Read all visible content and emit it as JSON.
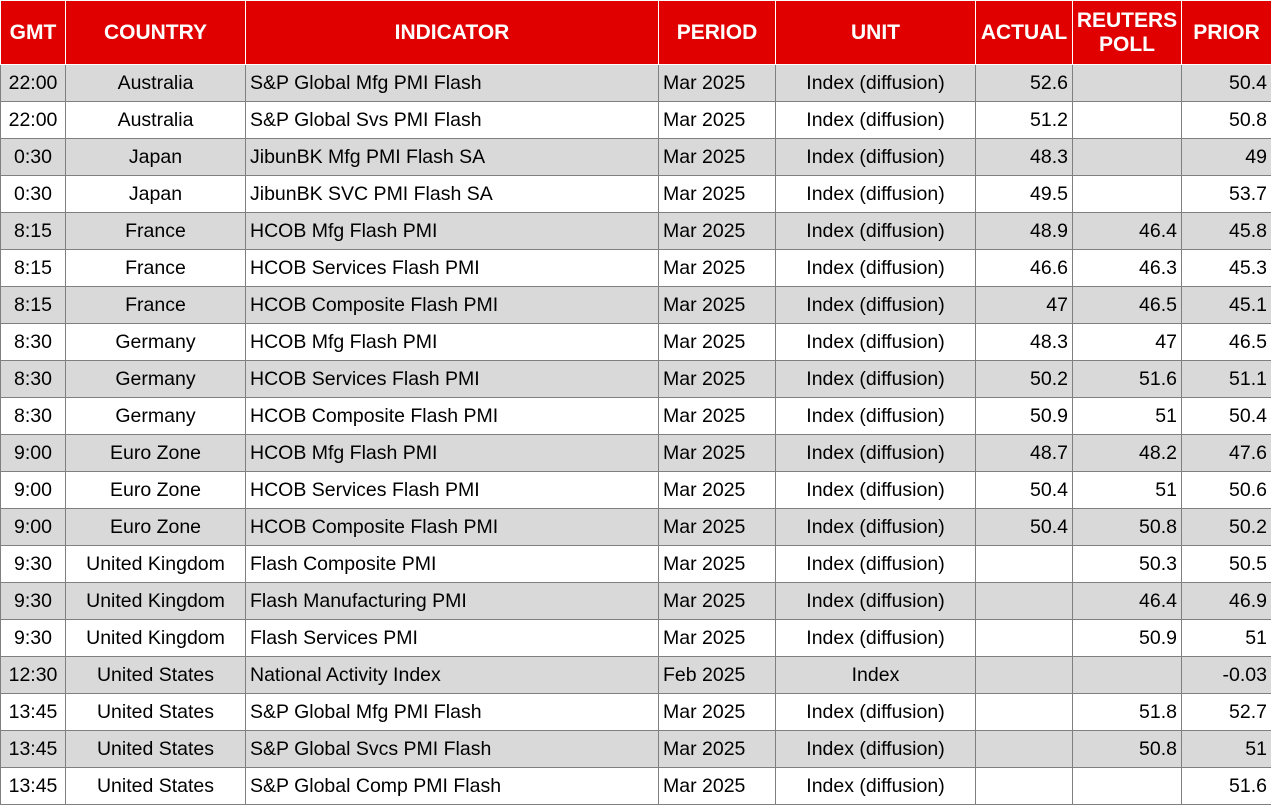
{
  "table": {
    "header": [
      "GMT",
      "COUNTRY",
      "INDICATOR",
      "PERIOD",
      "UNIT",
      "ACTUAL",
      "REUTERS POLL",
      "PRIOR"
    ],
    "rows": [
      [
        "22:00",
        "Australia",
        "S&P Global Mfg PMI Flash",
        "Mar 2025",
        "Index (diffusion)",
        52.6,
        null,
        50.4
      ],
      [
        "22:00",
        "Australia",
        "S&P Global Svs PMI Flash",
        "Mar 2025",
        "Index (diffusion)",
        51.2,
        null,
        50.8
      ],
      [
        "0:30",
        "Japan",
        "JibunBK Mfg PMI Flash SA",
        "Mar 2025",
        "Index (diffusion)",
        48.3,
        null,
        49
      ],
      [
        "0:30",
        "Japan",
        "JibunBK SVC PMI Flash SA",
        "Mar 2025",
        "Index (diffusion)",
        49.5,
        null,
        53.7
      ],
      [
        "8:15",
        "France",
        "HCOB Mfg Flash PMI",
        "Mar 2025",
        "Index (diffusion)",
        48.9,
        46.4,
        45.8
      ],
      [
        "8:15",
        "France",
        "HCOB Services Flash PMI",
        "Mar 2025",
        "Index (diffusion)",
        46.6,
        46.3,
        45.3
      ],
      [
        "8:15",
        "France",
        "HCOB Composite Flash PMI",
        "Mar 2025",
        "Index (diffusion)",
        47,
        46.5,
        45.1
      ],
      [
        "8:30",
        "Germany",
        "HCOB Mfg Flash PMI",
        "Mar 2025",
        "Index (diffusion)",
        48.3,
        47,
        46.5
      ],
      [
        "8:30",
        "Germany",
        "HCOB Services Flash PMI",
        "Mar 2025",
        "Index (diffusion)",
        50.2,
        51.6,
        51.1
      ],
      [
        "8:30",
        "Germany",
        "HCOB Composite Flash PMI",
        "Mar 2025",
        "Index (diffusion)",
        50.9,
        51,
        50.4
      ],
      [
        "9:00",
        "Euro Zone",
        "HCOB Mfg Flash PMI",
        "Mar 2025",
        "Index (diffusion)",
        48.7,
        48.2,
        47.6
      ],
      [
        "9:00",
        "Euro Zone",
        "HCOB Services Flash PMI",
        "Mar 2025",
        "Index (diffusion)",
        50.4,
        51,
        50.6
      ],
      [
        "9:00",
        "Euro Zone",
        "HCOB Composite Flash PMI",
        "Mar 2025",
        "Index (diffusion)",
        50.4,
        50.8,
        50.2
      ],
      [
        "9:30",
        "United Kingdom",
        "Flash Composite PMI",
        "Mar 2025",
        "Index (diffusion)",
        null,
        50.3,
        50.5
      ],
      [
        "9:30",
        "United Kingdom",
        "Flash Manufacturing PMI",
        "Mar 2025",
        "Index (diffusion)",
        null,
        46.4,
        46.9
      ],
      [
        "9:30",
        "United Kingdom",
        "Flash Services PMI",
        "Mar 2025",
        "Index (diffusion)",
        null,
        50.9,
        51
      ],
      [
        "12:30",
        "United States",
        "National Activity Index",
        "Feb 2025",
        "Index",
        null,
        null,
        -0.03
      ],
      [
        "13:45",
        "United States",
        "S&P Global Mfg PMI Flash",
        "Mar 2025",
        "Index (diffusion)",
        null,
        51.8,
        52.7
      ],
      [
        "13:45",
        "United States",
        "S&P Global Svcs PMI Flash",
        "Mar 2025",
        "Index (diffusion)",
        null,
        50.8,
        51
      ],
      [
        "13:45",
        "United States",
        "S&P Global Comp PMI Flash",
        "Mar 2025",
        "Index (diffusion)",
        null,
        null,
        51.6
      ]
    ]
  }
}
